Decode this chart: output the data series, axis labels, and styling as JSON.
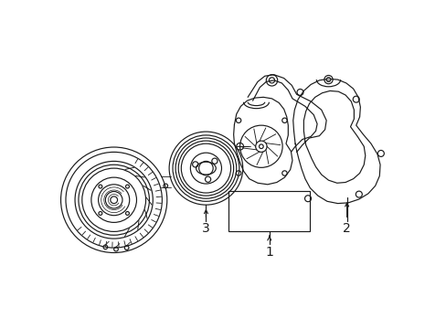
{
  "bg_color": "#ffffff",
  "lc": "#1a1a1a",
  "lw": 0.85,
  "fw": 4.89,
  "fh": 3.6,
  "dpi": 100,
  "labels": [
    "1",
    "2",
    "3"
  ],
  "label_fs": 10
}
